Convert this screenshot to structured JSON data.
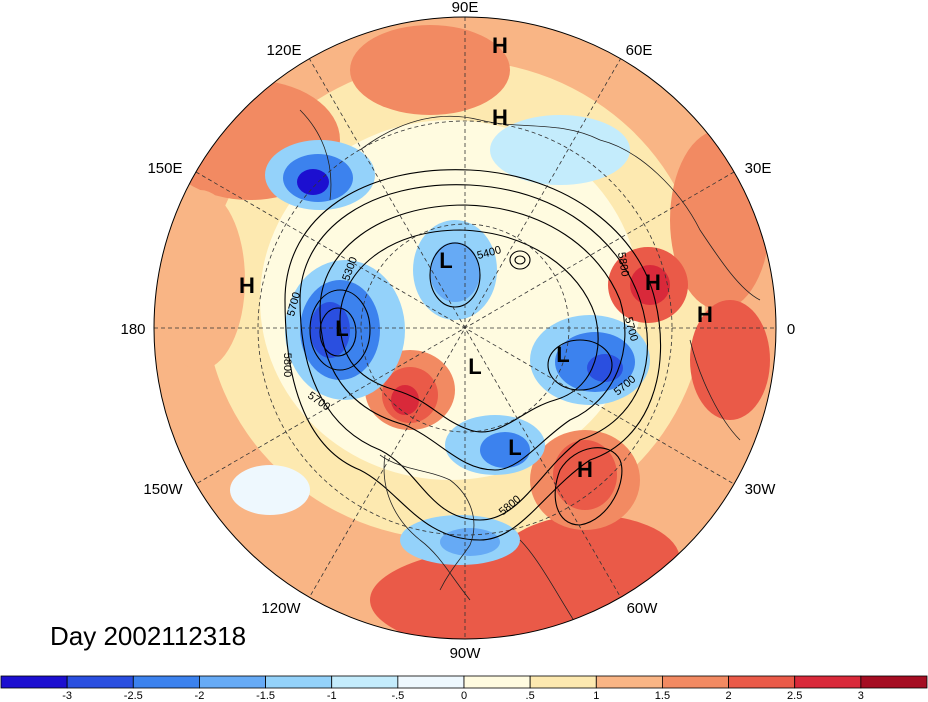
{
  "title": "Day 2002112318",
  "longitude_labels": [
    {
      "text": "90E"
    },
    {
      "text": "60E"
    },
    {
      "text": "30E"
    },
    {
      "text": "0"
    },
    {
      "text": "30W"
    },
    {
      "text": "60W"
    },
    {
      "text": "90W"
    },
    {
      "text": "120W"
    },
    {
      "text": "150W"
    },
    {
      "text": "180"
    },
    {
      "text": "150E"
    },
    {
      "text": "120E"
    }
  ],
  "pressure_centers": [
    {
      "type": "H",
      "text": "H"
    },
    {
      "type": "H",
      "text": "H"
    },
    {
      "type": "H",
      "text": "H"
    },
    {
      "type": "H",
      "text": "H"
    },
    {
      "type": "H",
      "text": "H"
    },
    {
      "type": "H",
      "text": "H"
    },
    {
      "type": "L",
      "text": "L"
    },
    {
      "type": "L",
      "text": "L"
    },
    {
      "type": "L",
      "text": "L"
    },
    {
      "type": "L",
      "text": "L"
    },
    {
      "type": "L",
      "text": "L"
    }
  ],
  "contour_labels": [
    {
      "text": "5400"
    },
    {
      "text": "5300"
    },
    {
      "text": "5700"
    },
    {
      "text": "5800"
    },
    {
      "text": "5700"
    },
    {
      "text": "5800"
    },
    {
      "text": "5700"
    },
    {
      "text": "5700"
    },
    {
      "text": "5800"
    }
  ],
  "colorbar": {
    "colors": [
      "#1c0fd0",
      "#2a4fe0",
      "#3c82ee",
      "#66aaf5",
      "#94d2fa",
      "#c4ecfc",
      "#eef8fe",
      "#fffbe0",
      "#fde9b0",
      "#f9b585",
      "#f28a62",
      "#ea5a48",
      "#d9293a",
      "#a50d22"
    ],
    "ticks": [
      "-3",
      "-2.5",
      "-2",
      "-1.5",
      "-1",
      "-.5",
      "0",
      ".5",
      "1",
      "1.5",
      "2",
      "2.5",
      "3"
    ]
  }
}
